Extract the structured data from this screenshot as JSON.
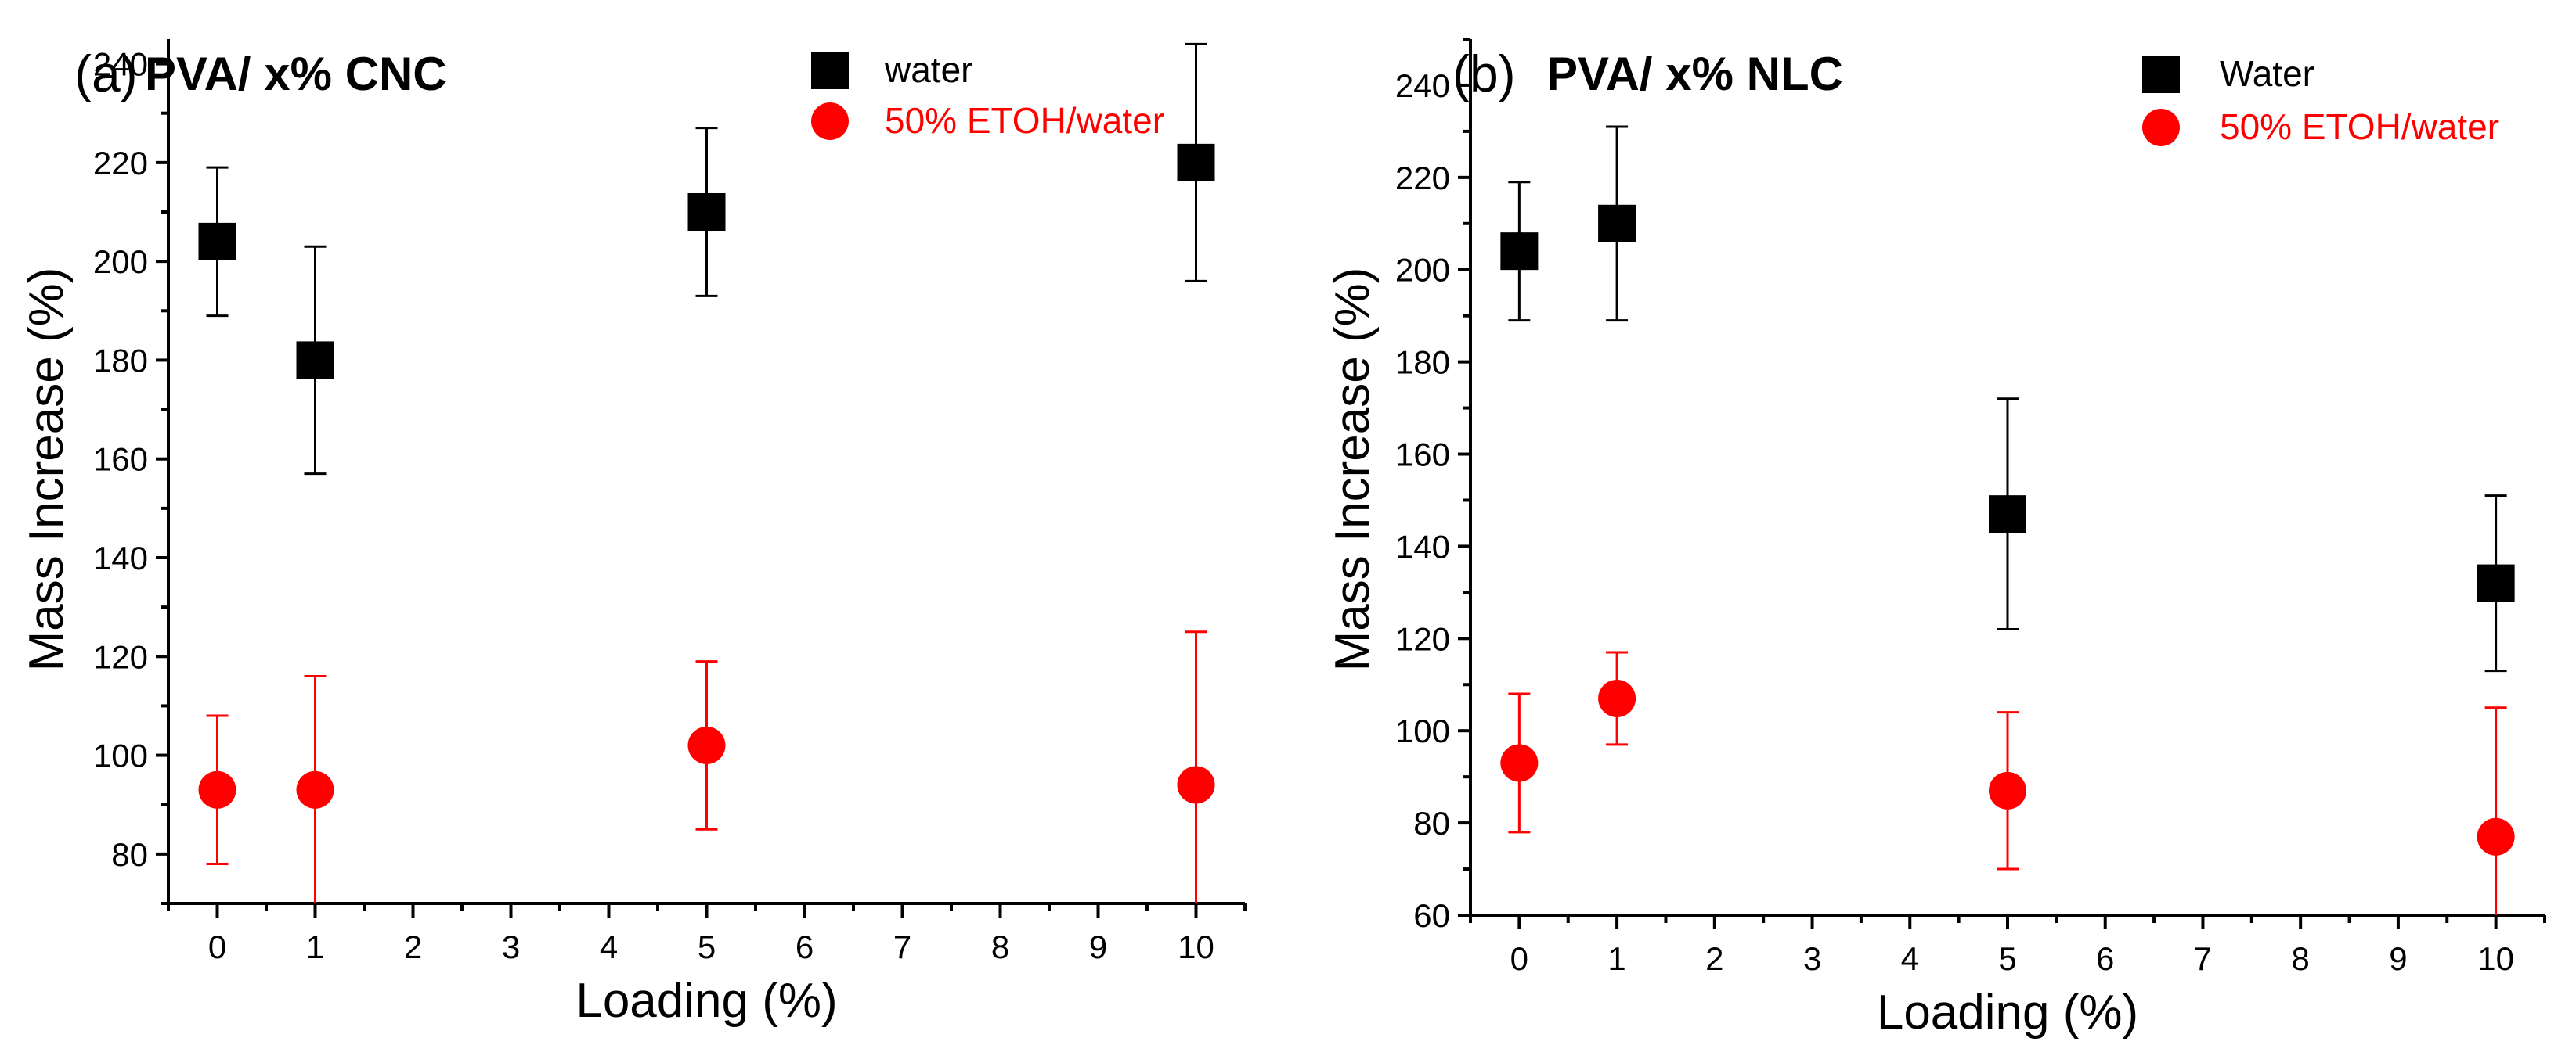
{
  "chart_data": [
    {
      "type": "scatter",
      "panel_label": "(a)",
      "title": "PVA/ x% CNC",
      "xlabel": "Loading (%)",
      "ylabel": "Mass Increase (%)",
      "xlim": [
        -0.5,
        10.5
      ],
      "ylim": [
        70,
        245
      ],
      "xticks": [
        0,
        1,
        2,
        3,
        4,
        5,
        6,
        7,
        8,
        9,
        10
      ],
      "yticks": [
        80,
        100,
        120,
        140,
        160,
        180,
        200,
        220,
        240
      ],
      "legend_position": "top-right",
      "series": [
        {
          "name": "water",
          "marker": "square",
          "color": "#000000",
          "x": [
            0,
            1,
            5,
            10
          ],
          "y": [
            204,
            180,
            210,
            220
          ],
          "err_low": [
            189,
            157,
            193,
            196
          ],
          "err_high": [
            219,
            203,
            227,
            244
          ]
        },
        {
          "name": "50% ETOH/water",
          "marker": "circle",
          "color": "#ff0000",
          "x": [
            0,
            1,
            5,
            10
          ],
          "y": [
            93,
            93,
            102,
            94
          ],
          "err_low": [
            78,
            70,
            85,
            70
          ],
          "err_high": [
            108,
            116,
            119,
            125
          ]
        }
      ]
    },
    {
      "type": "scatter",
      "panel_label": "(b)",
      "title": "PVA/ x% NLC",
      "xlabel": "Loading (%)",
      "ylabel": "Mass Increase (%)",
      "xlim": [
        -0.5,
        10.5
      ],
      "ylim": [
        60,
        250
      ],
      "xticks": [
        0,
        1,
        2,
        3,
        4,
        5,
        6,
        7,
        8,
        9,
        10
      ],
      "yticks": [
        60,
        80,
        100,
        120,
        140,
        160,
        180,
        200,
        220,
        240
      ],
      "legend_position": "top-right",
      "series": [
        {
          "name": "Water",
          "marker": "square",
          "color": "#000000",
          "x": [
            0,
            1,
            5,
            10
          ],
          "y": [
            204,
            210,
            147,
            132
          ],
          "err_low": [
            189,
            189,
            122,
            113
          ],
          "err_high": [
            219,
            231,
            172,
            151
          ]
        },
        {
          "name": "50% ETOH/water",
          "marker": "circle",
          "color": "#ff0000",
          "x": [
            0,
            1,
            5,
            10
          ],
          "y": [
            93,
            107,
            87,
            77
          ],
          "err_low": [
            78,
            97,
            70,
            60
          ],
          "err_high": [
            108,
            117,
            104,
            105
          ]
        }
      ]
    }
  ]
}
